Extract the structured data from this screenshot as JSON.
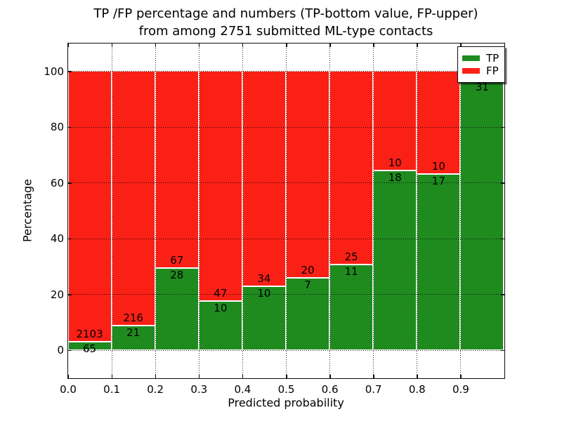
{
  "chart_data": {
    "type": "bar",
    "variant": "stacked-percentage-histogram",
    "title_lines": [
      "TP /FP percentage and numbers (TP-bottom value, FP-upper)",
      "from among 2751 submitted ML-type contacts"
    ],
    "xlabel": "Predicted probability",
    "ylabel": "Percentage",
    "total_contacts": 2751,
    "xlim": [
      0.0,
      1.0
    ],
    "ylim": [
      -10,
      110
    ],
    "bin_width": 0.1,
    "x_ticks": [
      0.0,
      0.1,
      0.2,
      0.3,
      0.4,
      0.5,
      0.6,
      0.7,
      0.8,
      0.9
    ],
    "x_tick_labels": [
      "0.0",
      "0.1",
      "0.2",
      "0.3",
      "0.4",
      "0.5",
      "0.6",
      "0.7",
      "0.8",
      "0.9"
    ],
    "y_ticks": [
      0,
      20,
      40,
      60,
      80,
      100
    ],
    "y_tick_labels": [
      "0",
      "20",
      "40",
      "60",
      "80",
      "100"
    ],
    "grid": {
      "on": true,
      "style": "dotted"
    },
    "colors": {
      "tp": "#1f8b1f",
      "fp": "#fa2016"
    },
    "legend": {
      "position": "upper-right",
      "entries": [
        {
          "label": "TP",
          "color": "#1f8b1f"
        },
        {
          "label": "FP",
          "color": "#fa2016"
        }
      ]
    },
    "bins": [
      {
        "x_start": 0.0,
        "tp_count": 65,
        "fp_count": 2103,
        "tp_label": "65",
        "fp_label": "2103"
      },
      {
        "x_start": 0.1,
        "tp_count": 21,
        "fp_count": 216,
        "tp_label": "21",
        "fp_label": "216"
      },
      {
        "x_start": 0.2,
        "tp_count": 28,
        "fp_count": 67,
        "tp_label": "28",
        "fp_label": "67"
      },
      {
        "x_start": 0.3,
        "tp_count": 10,
        "fp_count": 47,
        "tp_label": "10",
        "fp_label": "47"
      },
      {
        "x_start": 0.4,
        "tp_count": 10,
        "fp_count": 34,
        "tp_label": "10",
        "fp_label": "34"
      },
      {
        "x_start": 0.5,
        "tp_count": 7,
        "fp_count": 20,
        "tp_label": "7",
        "fp_label": "20"
      },
      {
        "x_start": 0.6,
        "tp_count": 11,
        "fp_count": 25,
        "tp_label": "11",
        "fp_label": "25"
      },
      {
        "x_start": 0.7,
        "tp_count": 18,
        "fp_count": 10,
        "tp_label": "18",
        "fp_label": "10"
      },
      {
        "x_start": 0.8,
        "tp_count": 17,
        "fp_count": 10,
        "tp_label": "17",
        "fp_label": "10"
      },
      {
        "x_start": 0.9,
        "tp_count": 31,
        "fp_count": 1,
        "tp_label": "31",
        "fp_label": ""
      }
    ]
  }
}
